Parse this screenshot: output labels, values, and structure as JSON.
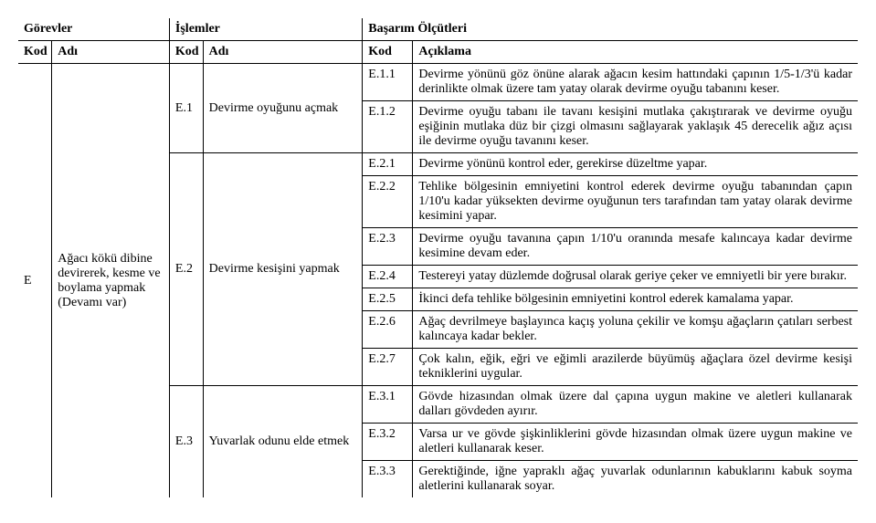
{
  "header": {
    "gorevler": "Görevler",
    "islemler": "İşlemler",
    "basarim": "Başarım Ölçütleri",
    "kod": "Kod",
    "adi": "Adı",
    "aciklama": "Açıklama"
  },
  "group": {
    "kod": "E",
    "adi": "Ağacı kökü dibine devirerek, kesme ve boylama yapmak (Devamı var)"
  },
  "ops": {
    "op1": {
      "kod": "E.1",
      "adi": "Devirme oyuğunu açmak"
    },
    "op2": {
      "kod": "E.2",
      "adi": "Devirme kesişini yapmak"
    },
    "op3": {
      "kod": "E.3",
      "adi": "Yuvarlak odunu elde etmek"
    }
  },
  "rows": {
    "r11": {
      "kod": "E.1.1",
      "text": "Devirme yönünü göz önüne alarak ağacın kesim hattındaki çapının 1/5-1/3'ü kadar derinlikte olmak üzere tam yatay olarak devirme oyuğu tabanını keser."
    },
    "r12": {
      "kod": "E.1.2",
      "text": "Devirme oyuğu tabanı ile tavanı kesişini mutlaka çakıştırarak ve devirme oyuğu eşiğinin mutlaka düz bir çizgi olmasını sağlayarak yaklaşık 45 derecelik ağız açısı ile devirme oyuğu tavanını keser."
    },
    "r21": {
      "kod": "E.2.1",
      "text": "Devirme yönünü kontrol eder, gerekirse düzeltme yapar."
    },
    "r22": {
      "kod": "E.2.2",
      "text": "Tehlike bölgesinin emniyetini kontrol ederek devirme oyuğu tabanından çapın 1/10'u kadar yüksekten devirme oyuğunun ters tarafından tam yatay olarak devirme kesimini yapar."
    },
    "r23": {
      "kod": "E.2.3",
      "text": "Devirme oyuğu tavanına çapın 1/10'u oranında mesafe kalıncaya kadar devirme kesimine devam eder."
    },
    "r24": {
      "kod": "E.2.4",
      "text": "Testereyi yatay düzlemde doğrusal olarak geriye çeker ve emniyetli bir yere bırakır."
    },
    "r25": {
      "kod": "E.2.5",
      "text": "İkinci defa tehlike bölgesinin emniyetini kontrol ederek kamalama yapar."
    },
    "r26": {
      "kod": "E.2.6",
      "text": "Ağaç devrilmeye başlayınca kaçış yoluna çekilir ve komşu ağaçların çatıları serbest kalıncaya kadar bekler."
    },
    "r27": {
      "kod": "E.2.7",
      "text": "Çok kalın, eğik, eğri ve eğimli arazilerde büyümüş ağaçlara özel devirme kesişi tekniklerini uygular."
    },
    "r31": {
      "kod": "E.3.1",
      "text": "Gövde hizasından olmak üzere dal çapına uygun makine ve aletleri kullanarak dalları gövdeden ayırır."
    },
    "r32": {
      "kod": "E.3.2",
      "text": "Varsa ur ve gövde şişkinliklerini gövde hizasından olmak üzere uygun makine ve aletleri kullanarak keser."
    },
    "r33": {
      "kod": "E.3.3",
      "text": "Gerektiğinde, iğne yapraklı ağaç yuvarlak odunlarının kabuklarını kabuk soyma aletlerini kullanarak soyar."
    }
  }
}
